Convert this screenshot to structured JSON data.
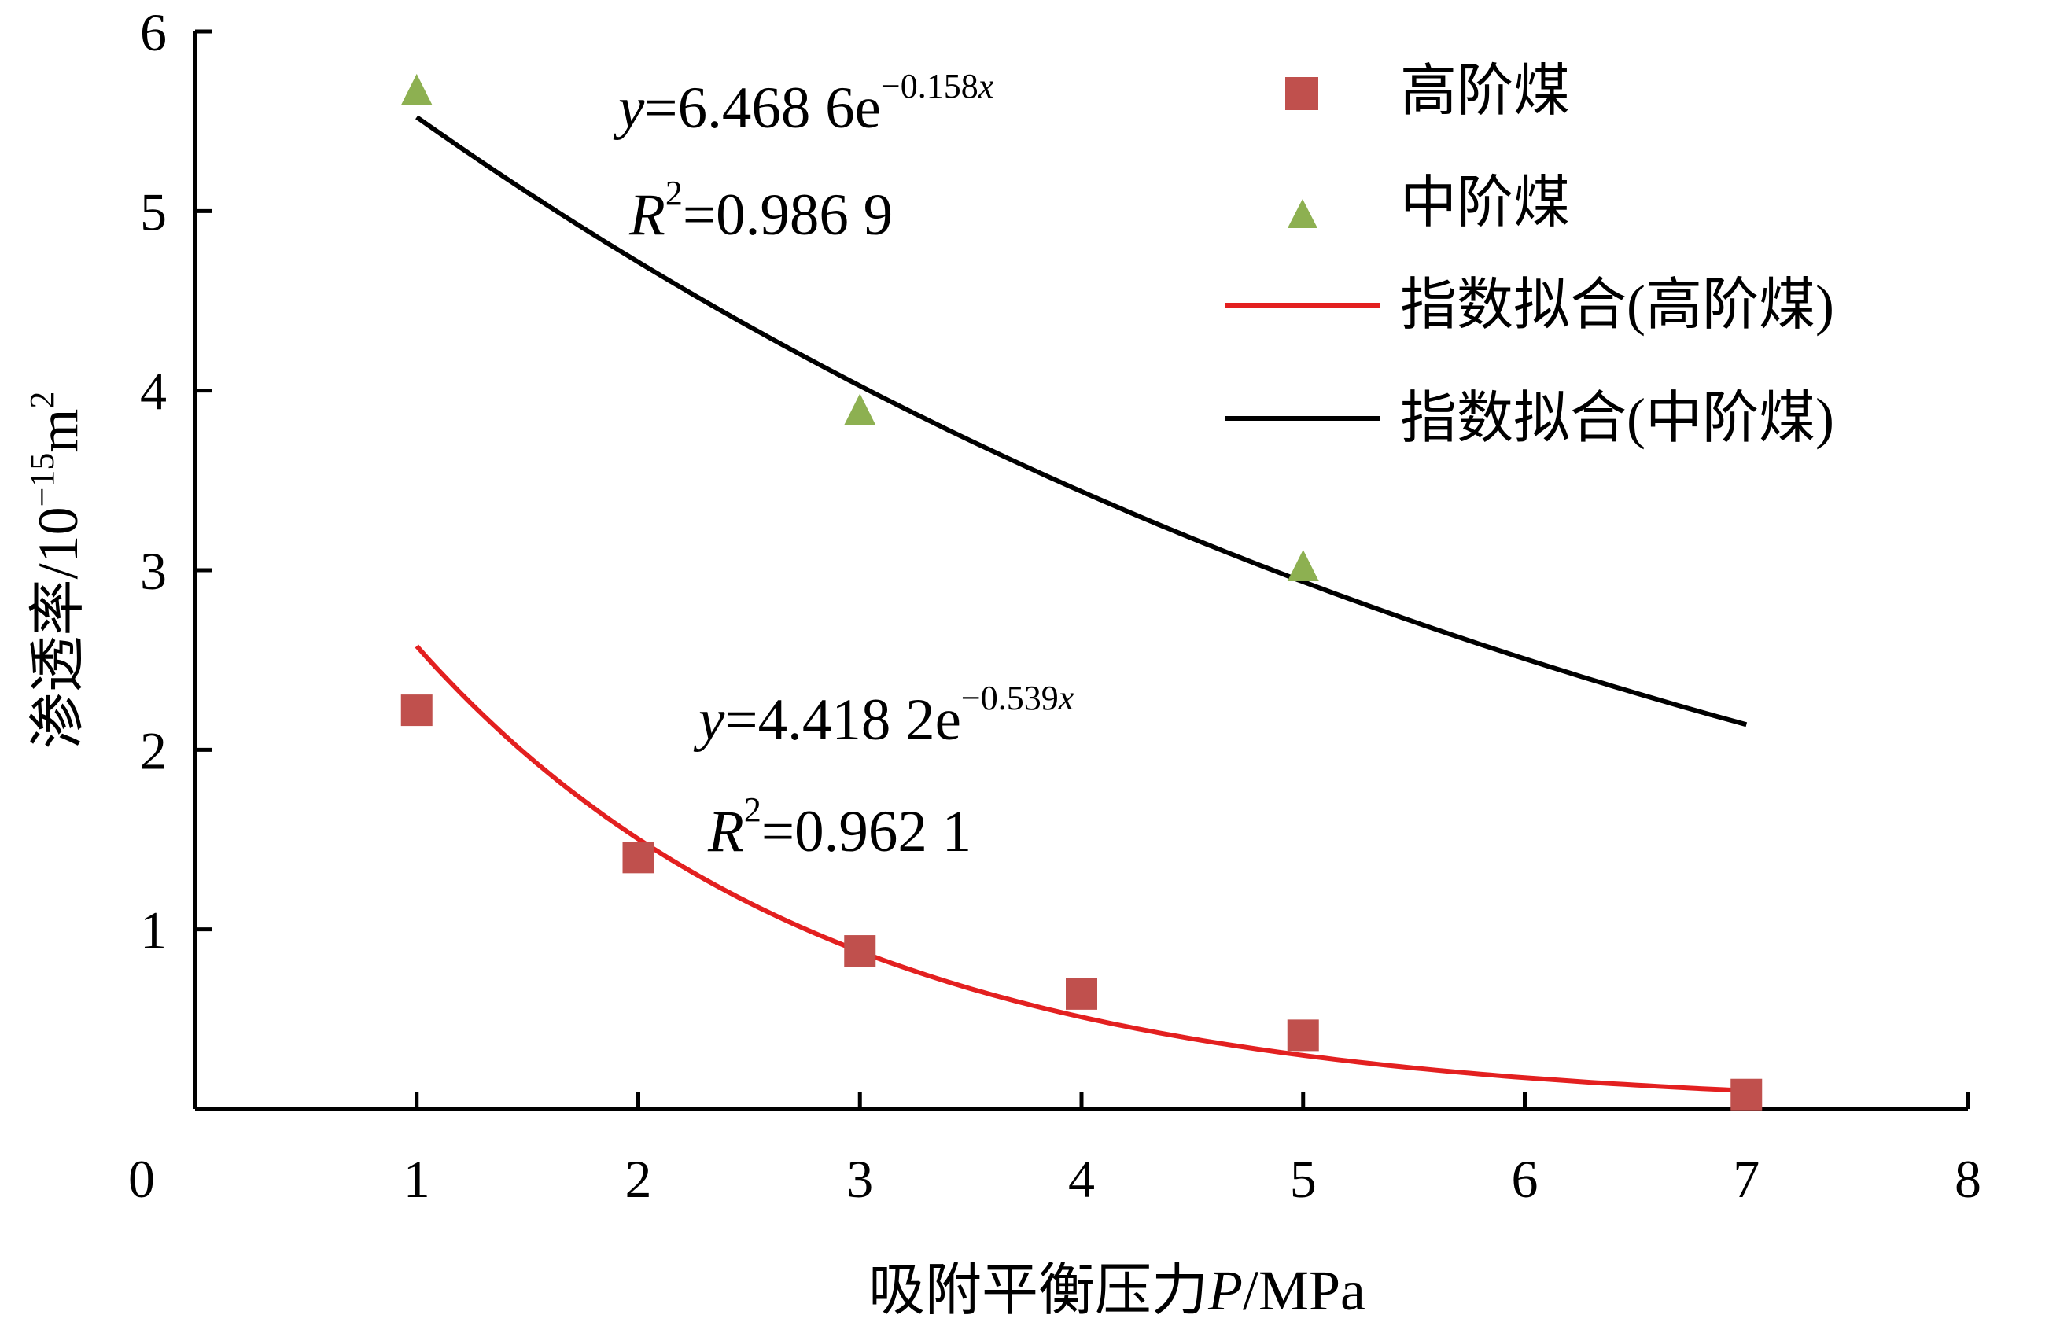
{
  "chart_data": {
    "type": "scatter",
    "xlabel_main": "吸附平衡压力",
    "xlabel_var": "P",
    "xlabel_unit": "/MPa",
    "ylabel_main": "渗透率/10",
    "ylabel_exp": "−15",
    "ylabel_unit": "m",
    "ylabel_unit_exp": "2",
    "xlim": [
      0,
      8
    ],
    "ylim": [
      0,
      6
    ],
    "x_ticks": [
      "0",
      "1",
      "2",
      "3",
      "4",
      "5",
      "6",
      "7",
      "8"
    ],
    "y_ticks": [
      "1",
      "2",
      "3",
      "4",
      "5",
      "6"
    ],
    "grid": false,
    "legend_position": "top-right",
    "series": [
      {
        "name": "高阶煤",
        "marker": "square",
        "color": "#c0504d",
        "points": [
          [
            1,
            2.22
          ],
          [
            2,
            1.4
          ],
          [
            3,
            0.88
          ],
          [
            4,
            0.64
          ],
          [
            5,
            0.41
          ],
          [
            7,
            0.08
          ]
        ]
      },
      {
        "name": "中阶煤",
        "marker": "triangle",
        "color": "#8db051",
        "points": [
          [
            1,
            5.65
          ],
          [
            3,
            3.87
          ],
          [
            5,
            3.0
          ]
        ]
      }
    ],
    "fits": [
      {
        "name": "指数拟合(高阶煤)",
        "color": "#e32020",
        "a": 4.4182,
        "b": -0.539,
        "x_range": [
          1,
          7
        ],
        "eq_y": "y",
        "eq_mid": "=4.418 2e",
        "eq_exp_num": "−0.539",
        "eq_exp_var": "x",
        "r2_r": "R",
        "r2_sup": "2",
        "r2_val": "=0.962 1"
      },
      {
        "name": "指数拟合(中阶煤)",
        "color": "#000000",
        "a": 6.4686,
        "b": -0.158,
        "x_range": [
          1,
          7
        ],
        "eq_y": "y",
        "eq_mid": "=6.468 6e",
        "eq_exp_num": "−0.158",
        "eq_exp_var": "x",
        "r2_r": "R",
        "r2_sup": "2",
        "r2_val": "=0.986 9"
      }
    ]
  }
}
